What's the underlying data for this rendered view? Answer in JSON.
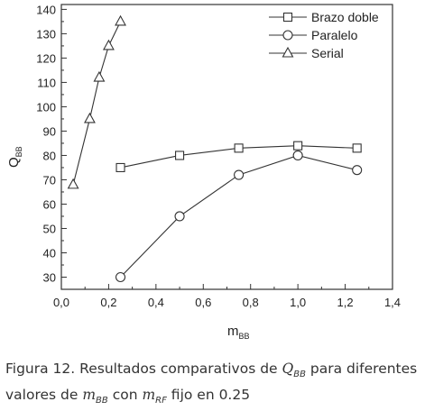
{
  "chart_data": {
    "type": "line",
    "xlabel": "m",
    "xlabel_sub": "BB",
    "ylabel": "Q",
    "ylabel_sub": "BB",
    "xlim": [
      0.0,
      1.4
    ],
    "ylim": [
      25,
      142
    ],
    "xticks": [
      "0,0",
      "0,2",
      "0,4",
      "0,6",
      "0,8",
      "1,0",
      "1,2",
      "1,4"
    ],
    "yticks": [
      "30",
      "40",
      "50",
      "60",
      "70",
      "80",
      "90",
      "100",
      "110",
      "120",
      "130",
      "140"
    ],
    "legend_position": "top-right",
    "series": [
      {
        "name": "Brazo doble",
        "marker": "square",
        "x": [
          0.25,
          0.5,
          0.75,
          1.0,
          1.25
        ],
        "y": [
          75,
          80,
          83,
          84,
          83
        ]
      },
      {
        "name": "Paralelo",
        "marker": "circle",
        "x": [
          0.25,
          0.5,
          0.75,
          1.0,
          1.25
        ],
        "y": [
          30,
          55,
          72,
          80,
          74
        ]
      },
      {
        "name": "Serial",
        "marker": "triangle",
        "x": [
          0.05,
          0.12,
          0.16,
          0.2,
          0.25
        ],
        "y": [
          68,
          95,
          112,
          125,
          135
        ]
      }
    ]
  },
  "caption": {
    "line1_prefix": "Figura 12. Resultados comparativos de ",
    "line1_q": "Q",
    "line1_q_sub": "BB",
    "line1_suffix": " para diferentes",
    "line2_prefix": "valores de ",
    "line2_m1": "m",
    "line2_m1_sub": "BB",
    "line2_mid": " con ",
    "line2_m2": "m",
    "line2_m2_sub": "RF",
    "line2_suffix": " fijo en 0.25"
  }
}
